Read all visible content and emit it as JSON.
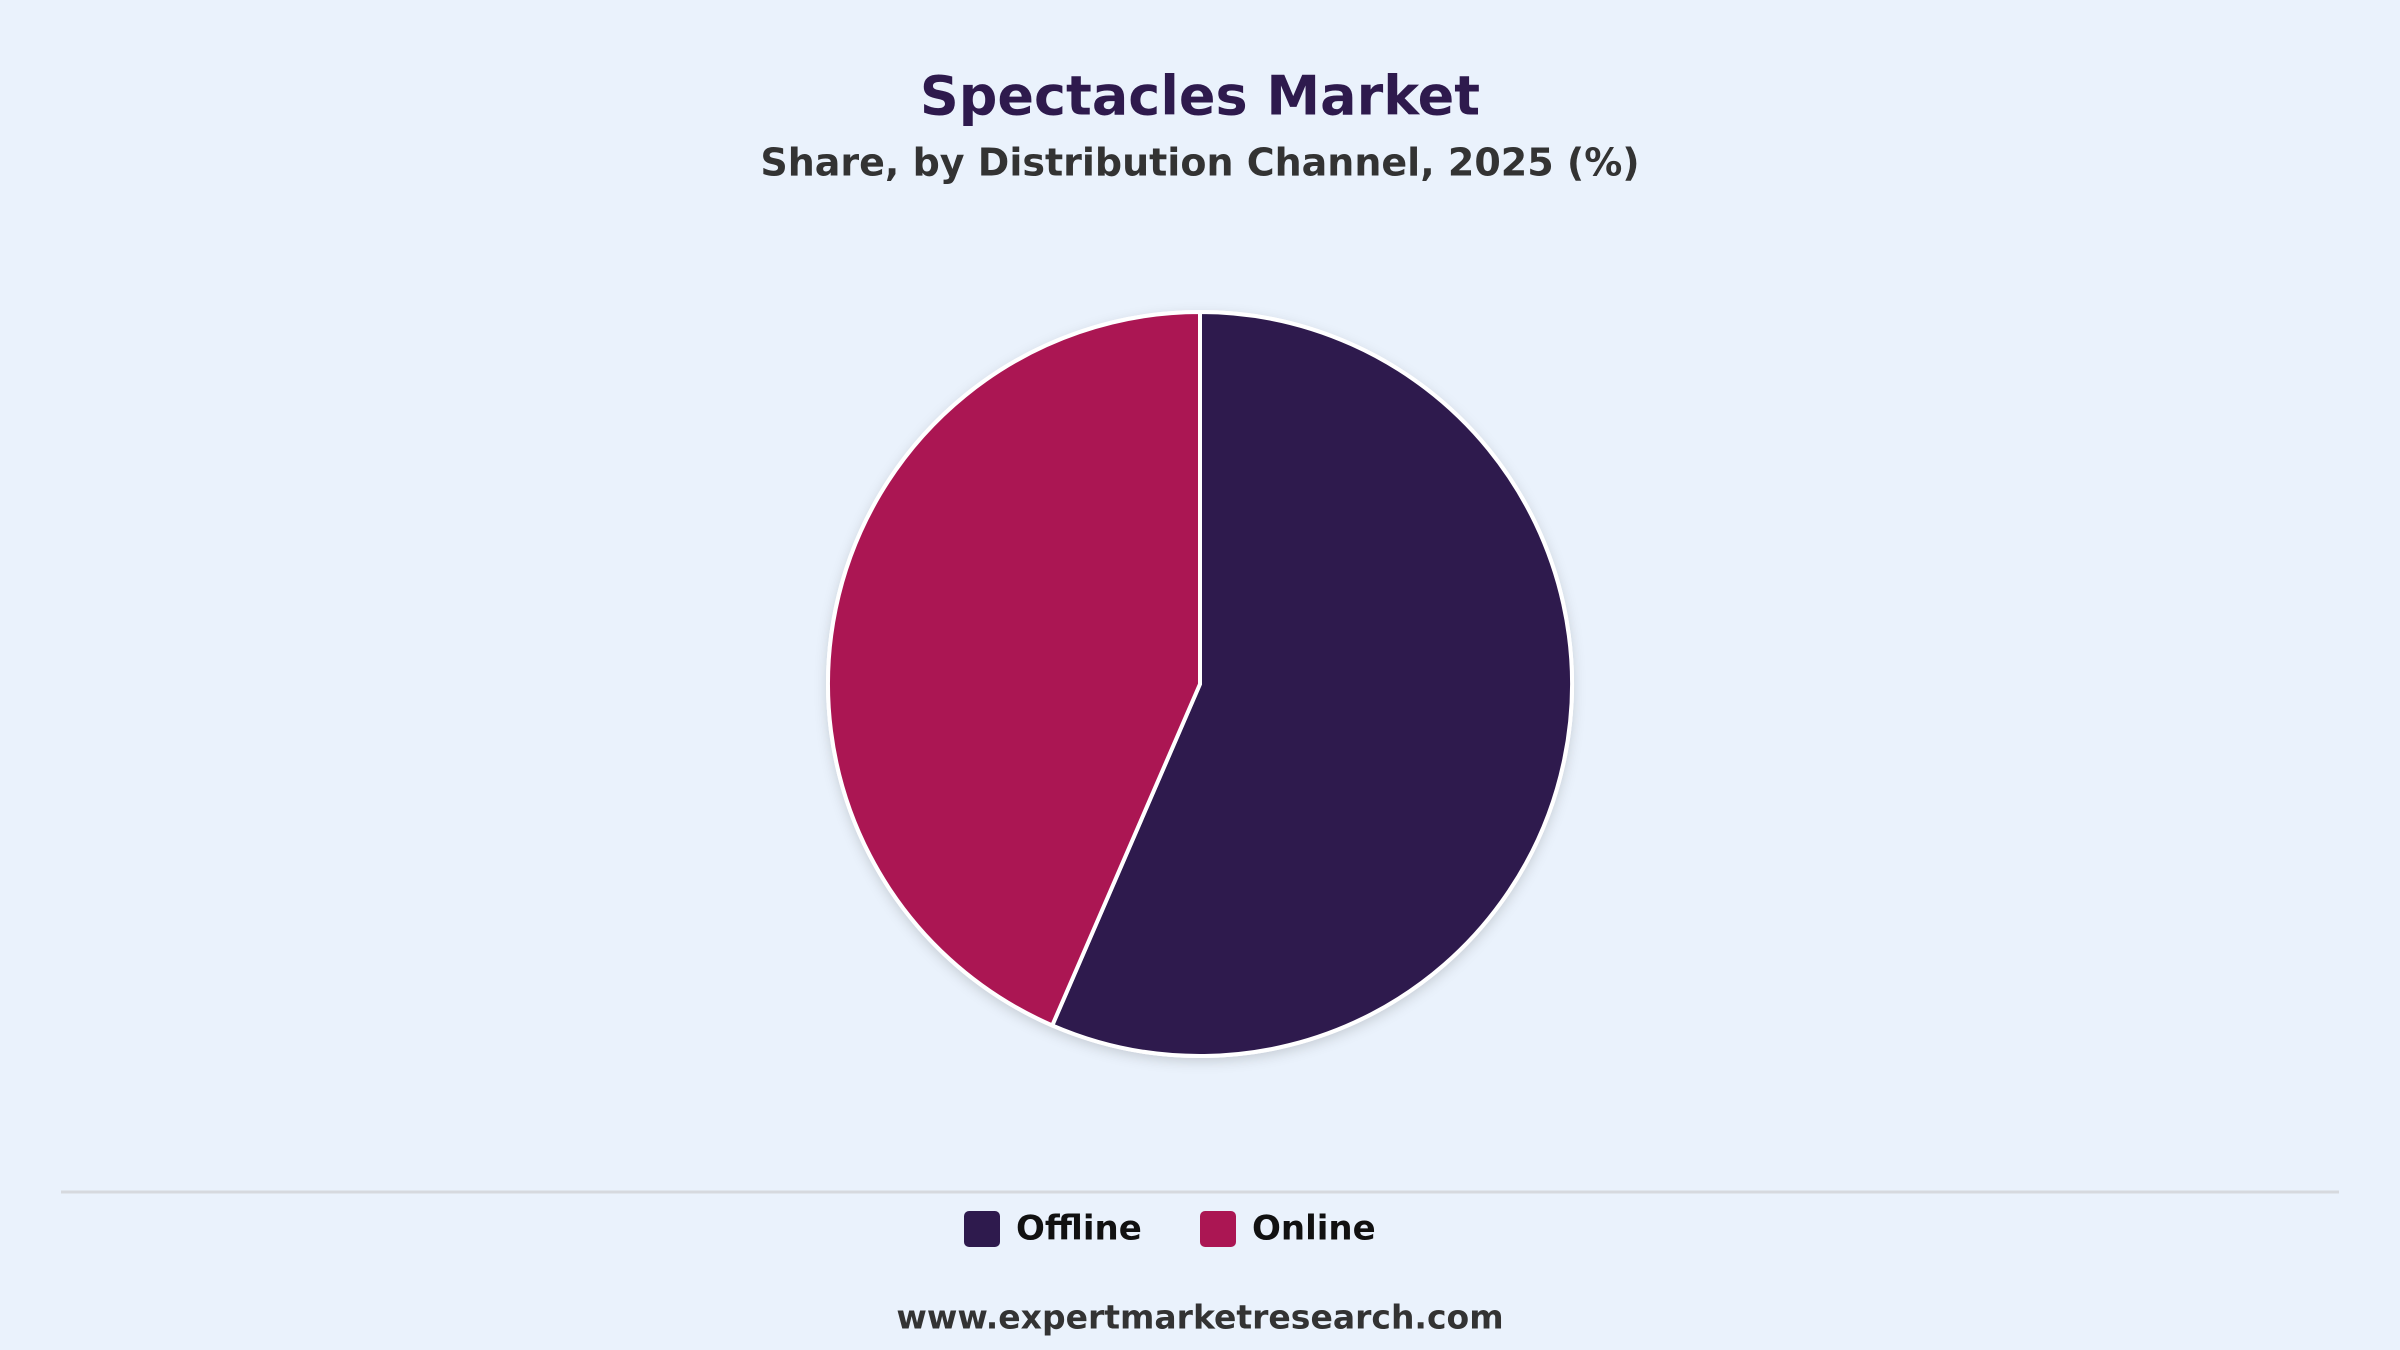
{
  "chart_data": {
    "type": "pie",
    "title": "Spectacles Market",
    "subtitle": "Share, by Distribution Channel, 2025 (%)",
    "categories": [
      "Offline",
      "Online"
    ],
    "values": [
      56.5,
      43.5
    ],
    "colors": [
      "#2e1a4d",
      "#ab1653"
    ],
    "source": "www.expertmarketresearch.com"
  }
}
